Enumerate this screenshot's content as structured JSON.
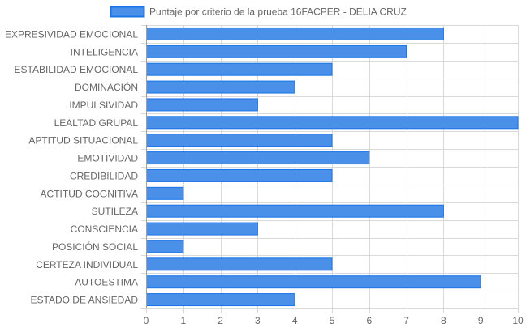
{
  "chart_data": {
    "type": "bar",
    "orientation": "horizontal",
    "legend": {
      "label": "Puntaje por criterio de la prueba 16FACPER - DELIA CRUZ",
      "placement": "top-center"
    },
    "categories": [
      "EXPRESIVIDAD EMOCIONAL",
      "INTELIGENCIA",
      "ESTABILIDAD EMOCIONAL",
      "DOMINACIÓN",
      "IMPULSIVIDAD",
      "LEALTAD GRUPAL",
      "APTITUD SITUACIONAL",
      "EMOTIVIDAD",
      "CREDIBILIDAD",
      "ACTITUD COGNITIVA",
      "SUTILEZA",
      "CONSCIENCIA",
      "POSICIÓN SOCIAL",
      "CERTEZA INDIVIDUAL",
      "AUTOESTIMA",
      "ESTADO DE ANSIEDAD"
    ],
    "series": [
      {
        "name": "Puntaje por criterio de la prueba 16FACPER - DELIA CRUZ",
        "values": [
          8,
          7,
          5,
          4,
          3,
          10,
          5,
          6,
          5,
          1,
          8,
          3,
          1,
          5,
          9,
          4
        ]
      }
    ],
    "xlim": [
      0,
      10
    ],
    "xticks": [
      "0",
      "1",
      "2",
      "3",
      "4",
      "5",
      "6",
      "7",
      "8",
      "9",
      "10"
    ],
    "grid": true,
    "colors": {
      "bar_fill": "#4a90e8",
      "bar_stroke": "#1a74e8",
      "grid": "#d9d9d9",
      "text": "#666666"
    }
  }
}
